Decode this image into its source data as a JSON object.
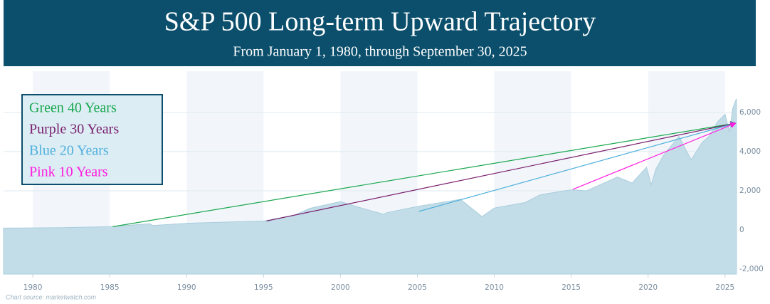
{
  "chart_data": {
    "type": "area",
    "title": "S&P 500 Long-term Upward Trajectory",
    "subtitle": "From January 1, 1980, through September 30, 2025",
    "source": "Chart source: marketwatch.com",
    "x": [
      1978.1,
      1980,
      1982,
      1985,
      1987.6,
      1987.8,
      1990,
      1995,
      1997,
      1998,
      2000,
      2001,
      2002.8,
      2003,
      2005,
      2007.8,
      2009.2,
      2010,
      2012,
      2013,
      2015,
      2016,
      2018,
      2018.97,
      2019.9,
      2020.2,
      2020.5,
      2021,
      2022,
      2022.8,
      2023.5,
      2024,
      2024.5,
      2025,
      2025.3,
      2025.5,
      2025.74
    ],
    "values": [
      95,
      107,
      120,
      170,
      320,
      230,
      340,
      460,
      750,
      1100,
      1450,
      1200,
      800,
      880,
      1200,
      1560,
      680,
      1120,
      1400,
      1800,
      2050,
      2000,
      2700,
      2400,
      3200,
      2300,
      3100,
      3800,
      4770,
      3580,
      4450,
      4800,
      5500,
      5900,
      5000,
      6200,
      6690
    ],
    "color": "#c3dde8",
    "xlim": [
      1978.1,
      2025.75
    ],
    "ylim": [
      -2250,
      8100
    ],
    "xticks": [
      1980,
      1985,
      1990,
      1995,
      2000,
      2005,
      2010,
      2015,
      2020,
      2025
    ],
    "yticks": [
      {
        "value": -2000,
        "label": "-2,000"
      },
      0,
      {
        "value": 2000,
        "label": "2,000"
      },
      {
        "value": 4000,
        "label": "4,000"
      },
      {
        "value": 6000,
        "label": "6,000"
      }
    ],
    "grid": true,
    "legend": "top-left",
    "trend_lines": [
      {
        "name": "Green 40 Years",
        "color": "#1aa84f",
        "x": [
          1985.2,
          2025.7
        ],
        "values": [
          170,
          5450
        ]
      },
      {
        "name": "Purple 30 Years",
        "color": "#7a1f6e",
        "x": [
          1995.2,
          2025.7
        ],
        "values": [
          460,
          5450
        ]
      },
      {
        "name": "Blue 20 Years",
        "color": "#4fb0dc",
        "x": [
          2005.1,
          2025.7
        ],
        "values": [
          950,
          5450
        ]
      },
      {
        "name": "Pink 10 Years",
        "color": "#ff1de0",
        "x": [
          2015.1,
          2025.7
        ],
        "values": [
          2070,
          5450
        ]
      }
    ]
  }
}
